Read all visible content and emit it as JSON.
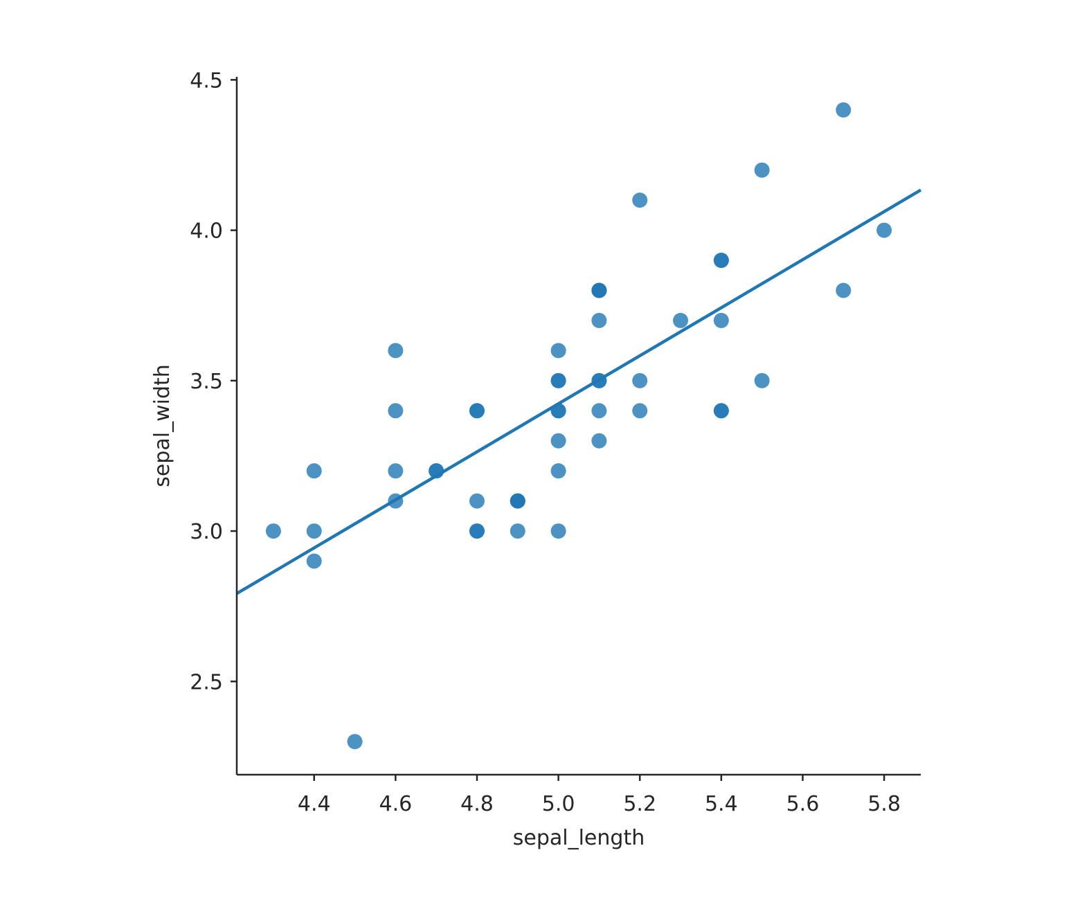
{
  "chart_data": {
    "type": "scatter",
    "title": "",
    "xlabel": "sepal_length",
    "ylabel": "sepal_width",
    "xlim": [
      4.21,
      5.89
    ],
    "ylim": [
      2.19,
      4.51
    ],
    "xticks": [
      "4.4",
      "4.6",
      "4.8",
      "5.0",
      "5.2",
      "5.4",
      "5.6",
      "5.8"
    ],
    "yticks": [
      "2.5",
      "3.0",
      "3.5",
      "4.0",
      "4.5"
    ],
    "color": "#1f77b4",
    "grid": false,
    "points": [
      [
        5.1,
        3.5
      ],
      [
        4.9,
        3.0
      ],
      [
        4.7,
        3.2
      ],
      [
        4.6,
        3.1
      ],
      [
        5.0,
        3.6
      ],
      [
        5.4,
        3.9
      ],
      [
        4.6,
        3.4
      ],
      [
        5.0,
        3.4
      ],
      [
        4.4,
        2.9
      ],
      [
        4.9,
        3.1
      ],
      [
        5.4,
        3.7
      ],
      [
        4.8,
        3.4
      ],
      [
        4.8,
        3.0
      ],
      [
        4.3,
        3.0
      ],
      [
        5.8,
        4.0
      ],
      [
        5.7,
        4.4
      ],
      [
        5.4,
        3.9
      ],
      [
        5.1,
        3.5
      ],
      [
        5.7,
        3.8
      ],
      [
        5.1,
        3.8
      ],
      [
        5.4,
        3.4
      ],
      [
        5.1,
        3.7
      ],
      [
        4.6,
        3.6
      ],
      [
        5.1,
        3.3
      ],
      [
        4.8,
        3.4
      ],
      [
        5.0,
        3.0
      ],
      [
        5.0,
        3.4
      ],
      [
        5.2,
        3.5
      ],
      [
        5.2,
        3.4
      ],
      [
        4.7,
        3.2
      ],
      [
        4.8,
        3.1
      ],
      [
        5.4,
        3.4
      ],
      [
        5.2,
        4.1
      ],
      [
        5.5,
        4.2
      ],
      [
        4.9,
        3.1
      ],
      [
        5.0,
        3.2
      ],
      [
        5.5,
        3.5
      ],
      [
        4.9,
        3.1
      ],
      [
        4.4,
        3.0
      ],
      [
        5.1,
        3.4
      ],
      [
        5.0,
        3.5
      ],
      [
        4.5,
        2.3
      ],
      [
        4.4,
        3.2
      ],
      [
        5.0,
        3.5
      ],
      [
        5.1,
        3.8
      ],
      [
        4.8,
        3.0
      ],
      [
        5.1,
        3.8
      ],
      [
        4.6,
        3.2
      ],
      [
        5.3,
        3.7
      ],
      [
        5.0,
        3.3
      ]
    ],
    "regression": {
      "slope": 0.7985,
      "intercept": -0.5694
    }
  }
}
